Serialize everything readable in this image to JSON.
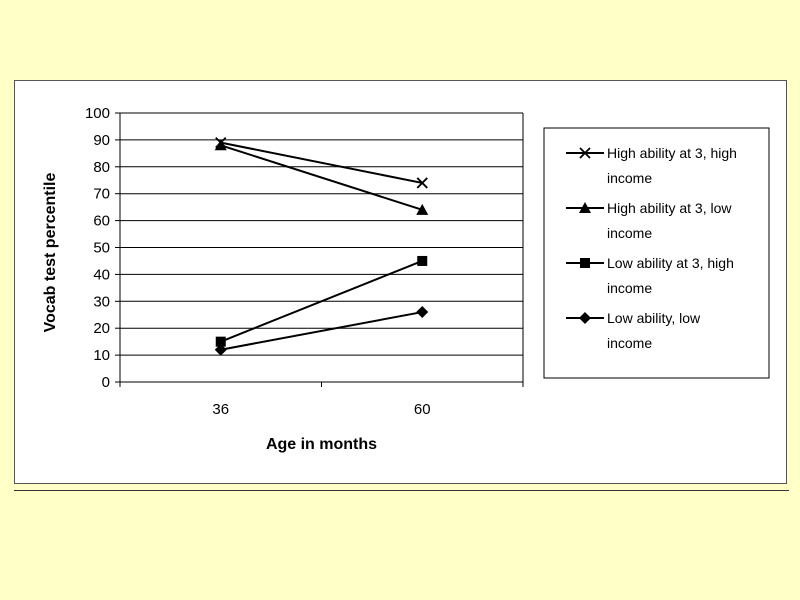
{
  "colors": {
    "background": "#ffffc8",
    "panel": "#ffffff",
    "series": "#000000"
  },
  "chart_data": {
    "type": "line",
    "x": [
      "36",
      "60"
    ],
    "xlabel": "Age in months",
    "ylabel": "Vocab test percentile",
    "ylim": [
      0,
      100
    ],
    "yticks": [
      0,
      10,
      20,
      30,
      40,
      50,
      60,
      70,
      80,
      90,
      100
    ],
    "grid": "horizontal",
    "legend_position": "right",
    "series": [
      {
        "name": "High ability at 3, high income",
        "legend_lines": [
          "High ability at 3, high",
          "income"
        ],
        "marker": "x",
        "values": [
          89,
          74
        ]
      },
      {
        "name": "High ability at 3, low income",
        "legend_lines": [
          "High ability at 3, low",
          "income"
        ],
        "marker": "triangle",
        "values": [
          88,
          64
        ]
      },
      {
        "name": "Low ability at 3, high income",
        "legend_lines": [
          "Low ability at 3, high",
          "income"
        ],
        "marker": "square",
        "values": [
          15,
          45
        ]
      },
      {
        "name": "Low ability, low income",
        "legend_lines": [
          "Low ability,  low",
          "income"
        ],
        "marker": "diamond",
        "values": [
          12,
          26
        ]
      }
    ]
  }
}
